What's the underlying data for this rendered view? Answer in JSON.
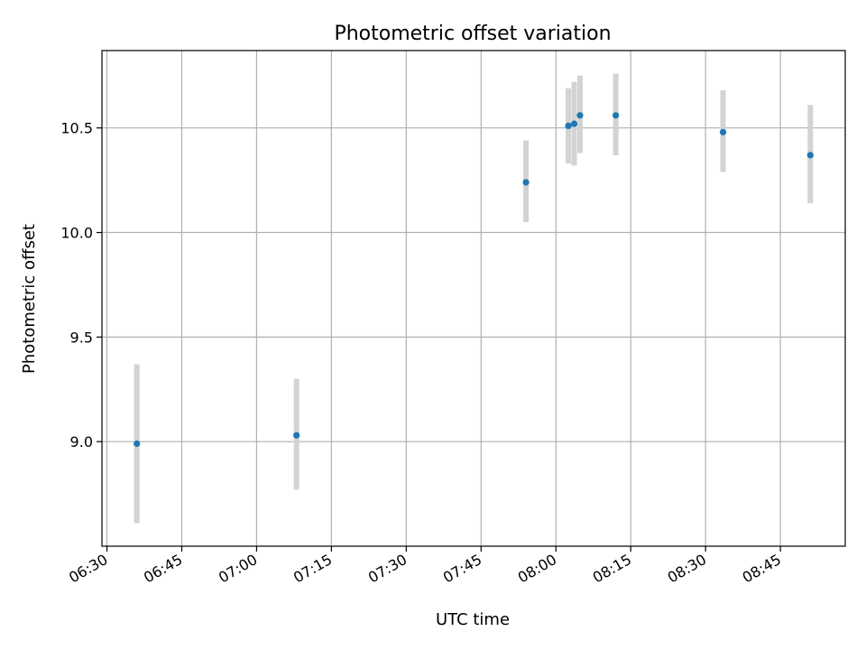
{
  "chart_data": {
    "type": "scatter",
    "title": "Photometric offset variation",
    "xlabel": "UTC time",
    "ylabel": "Photometric offset",
    "x_ticks": [
      "06:30",
      "06:45",
      "07:00",
      "07:15",
      "07:30",
      "07:45",
      "08:00",
      "08:15",
      "08:30",
      "08:45"
    ],
    "y_ticks": [
      "9.0",
      "9.5",
      "10.0",
      "10.5"
    ],
    "xlim": [
      "06:29",
      "08:58"
    ],
    "ylim": [
      8.5,
      10.87
    ],
    "grid": true,
    "colors": {
      "point": "#1f77b4",
      "errorbar": "#d3d3d3",
      "grid": "#b0b0b0"
    },
    "points": [
      {
        "x": "06:36",
        "y": 8.99,
        "ylow": 8.61,
        "yhigh": 9.37
      },
      {
        "x": "07:08",
        "y": 9.03,
        "ylow": 8.77,
        "yhigh": 9.3
      },
      {
        "x": "07:54",
        "y": 10.24,
        "ylow": 10.05,
        "yhigh": 10.44
      },
      {
        "x": "08:02:30",
        "y": 10.51,
        "ylow": 10.33,
        "yhigh": 10.69
      },
      {
        "x": "08:03:40",
        "y": 10.52,
        "ylow": 10.32,
        "yhigh": 10.72
      },
      {
        "x": "08:04:50",
        "y": 10.56,
        "ylow": 10.38,
        "yhigh": 10.75
      },
      {
        "x": "08:12",
        "y": 10.56,
        "ylow": 10.37,
        "yhigh": 10.76
      },
      {
        "x": "08:33:30",
        "y": 10.48,
        "ylow": 10.29,
        "yhigh": 10.68
      },
      {
        "x": "08:51",
        "y": 10.37,
        "ylow": 10.14,
        "yhigh": 10.61
      }
    ]
  }
}
